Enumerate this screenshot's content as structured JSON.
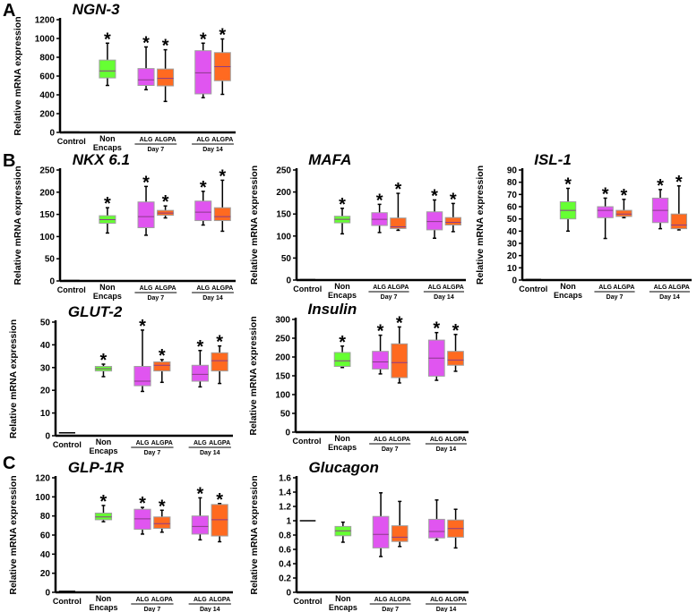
{
  "panel_labels": [
    "A",
    "B",
    "C"
  ],
  "colors": {
    "nonencaps": "#66ff33",
    "alg": "#e055f0",
    "algpa": "#ff6a20",
    "outline": "#a0a0a0",
    "median": "#8a3a8a"
  },
  "x_labels": {
    "control": "Control",
    "non1": "Non",
    "non2": "Encaps",
    "alg": "ALG",
    "algpa": "ALGPA",
    "day7": "Day 7",
    "day14": "Day 14"
  },
  "chart_data": [
    {
      "type": "box",
      "title": "NGN-3",
      "ylabel": "Relative mRNA expression",
      "ylim": [
        0,
        1200
      ],
      "yticks": [
        0,
        200,
        400,
        600,
        800,
        1000,
        1200
      ],
      "control": 5,
      "groups": [
        {
          "name": "Non Encaps",
          "color": "nonencaps",
          "values": [
            500,
            580,
            655,
            770,
            950
          ],
          "star": true
        },
        {
          "name": "ALG Day 7",
          "color": "alg",
          "values": [
            455,
            500,
            560,
            680,
            910
          ],
          "star": true
        },
        {
          "name": "ALGPA Day 7",
          "color": "algpa",
          "values": [
            330,
            495,
            575,
            675,
            880
          ],
          "star": true
        },
        {
          "name": "ALG Day 14",
          "color": "alg",
          "values": [
            370,
            410,
            635,
            870,
            950
          ],
          "star": true
        },
        {
          "name": "ALGPA Day 14",
          "color": "algpa",
          "values": [
            405,
            550,
            700,
            850,
            995
          ],
          "star": true
        }
      ]
    },
    {
      "type": "box",
      "title": "NKX 6.1",
      "ylabel": "Relative mRNA expression",
      "ylim": [
        0,
        250
      ],
      "yticks": [
        0,
        50,
        100,
        150,
        200,
        250
      ],
      "control": 1,
      "groups": [
        {
          "name": "Non Encaps",
          "color": "nonencaps",
          "values": [
            108,
            130,
            138,
            147,
            165
          ],
          "star": true
        },
        {
          "name": "ALG Day 7",
          "color": "alg",
          "values": [
            103,
            120,
            145,
            178,
            213
          ],
          "star": true
        },
        {
          "name": "ALGPA Day 7",
          "color": "algpa",
          "values": [
            142,
            148,
            153,
            159,
            169
          ],
          "star": true
        },
        {
          "name": "ALG Day 14",
          "color": "alg",
          "values": [
            126,
            136,
            155,
            180,
            202
          ],
          "star": true
        },
        {
          "name": "ALGPA Day 14",
          "color": "algpa",
          "values": [
            112,
            136,
            145,
            165,
            227
          ],
          "star": true
        }
      ]
    },
    {
      "type": "box",
      "title": "MAFA",
      "ylabel": "Relative mRNA expression",
      "ylim": [
        0,
        250
      ],
      "yticks": [
        0,
        50,
        100,
        150,
        200,
        250
      ],
      "control": 1,
      "groups": [
        {
          "name": "Non Encaps",
          "color": "nonencaps",
          "values": [
            105,
            130,
            138,
            145,
            163
          ],
          "star": true
        },
        {
          "name": "ALG Day 7",
          "color": "alg",
          "values": [
            108,
            124,
            138,
            153,
            172
          ],
          "star": true
        },
        {
          "name": "ALGPA Day 7",
          "color": "algpa",
          "values": [
            113,
            117,
            121,
            141,
            197
          ],
          "star": true
        },
        {
          "name": "ALG Day 14",
          "color": "alg",
          "values": [
            95,
            114,
            133,
            155,
            182
          ],
          "star": true
        },
        {
          "name": "ALGPA Day 14",
          "color": "algpa",
          "values": [
            110,
            125,
            131,
            142,
            174
          ],
          "star": true
        }
      ]
    },
    {
      "type": "box",
      "title": "ISL-1",
      "ylabel": "Relative mRNA expression",
      "ylim": [
        0,
        90
      ],
      "yticks": [
        0,
        10,
        20,
        30,
        40,
        50,
        60,
        70,
        80,
        90
      ],
      "control": 0.5,
      "groups": [
        {
          "name": "Non Encaps",
          "color": "nonencaps",
          "values": [
            40,
            50,
            57,
            64,
            75
          ],
          "star": true
        },
        {
          "name": "ALG Day 7",
          "color": "alg",
          "values": [
            34,
            51,
            57,
            60,
            67
          ],
          "star": true
        },
        {
          "name": "ALGPA Day 7",
          "color": "algpa",
          "values": [
            51,
            52,
            54,
            57,
            66
          ],
          "star": true
        },
        {
          "name": "ALG Day 14",
          "color": "alg",
          "values": [
            42,
            47,
            57,
            67,
            74
          ],
          "star": true
        },
        {
          "name": "ALGPA Day 14",
          "color": "algpa",
          "values": [
            41,
            42,
            45,
            54,
            77
          ],
          "star": true
        }
      ]
    },
    {
      "type": "box",
      "title": "GLUT-2",
      "ylabel": "Relative mRNA expression",
      "ylim": [
        0,
        50
      ],
      "yticks": [
        0,
        10,
        20,
        30,
        40,
        50
      ],
      "control": 1.3,
      "groups": [
        {
          "name": "Non Encaps",
          "color": "nonencaps",
          "values": [
            26,
            28.5,
            29.5,
            30.5,
            31.5
          ],
          "star": true
        },
        {
          "name": "ALG Day 7",
          "color": "alg",
          "values": [
            19.5,
            22,
            24,
            30.5,
            46.5
          ],
          "star": true
        },
        {
          "name": "ALGPA Day 7",
          "color": "algpa",
          "values": [
            23.5,
            28.5,
            31,
            32.5,
            33.5
          ],
          "star": true
        },
        {
          "name": "ALG Day 14",
          "color": "alg",
          "values": [
            21.5,
            24,
            27,
            31,
            37.5
          ],
          "star": true
        },
        {
          "name": "ALGPA Day 14",
          "color": "algpa",
          "values": [
            23,
            28.5,
            33,
            36.5,
            39.5
          ],
          "star": true
        }
      ]
    },
    {
      "type": "box",
      "title": "Insulin",
      "ylabel": "Relative mRNA expression",
      "ylim": [
        0,
        300
      ],
      "yticks": [
        0,
        50,
        100,
        150,
        200,
        250,
        300
      ],
      "control": 1,
      "groups": [
        {
          "name": "Non Encaps",
          "color": "nonencaps",
          "values": [
            172,
            175,
            190,
            212,
            229
          ],
          "star": true
        },
        {
          "name": "ALG Day 7",
          "color": "alg",
          "values": [
            155,
            168,
            187,
            215,
            258
          ],
          "star": true
        },
        {
          "name": "ALGPA Day 7",
          "color": "algpa",
          "values": [
            131,
            145,
            185,
            235,
            280
          ],
          "star": true
        },
        {
          "name": "ALG Day 14",
          "color": "alg",
          "values": [
            138,
            149,
            197,
            245,
            265
          ],
          "star": true
        },
        {
          "name": "ALGPA Day 14",
          "color": "algpa",
          "values": [
            162,
            178,
            192,
            215,
            260
          ],
          "star": true
        }
      ]
    },
    {
      "type": "box",
      "title": "GLP-1R",
      "ylabel": "Relative mRNA expression",
      "ylim": [
        0,
        120
      ],
      "yticks": [
        0,
        20,
        40,
        60,
        80,
        100,
        120
      ],
      "control": 1,
      "groups": [
        {
          "name": "Non Encaps",
          "color": "nonencaps",
          "values": [
            74,
            76,
            79,
            83,
            91
          ],
          "star": true
        },
        {
          "name": "ALG Day 7",
          "color": "alg",
          "values": [
            61,
            66,
            77,
            87,
            89
          ],
          "star": true
        },
        {
          "name": "ALGPA Day 7",
          "color": "algpa",
          "values": [
            63,
            67,
            72,
            79,
            86
          ],
          "star": true
        },
        {
          "name": "ALG Day 14",
          "color": "alg",
          "values": [
            55,
            61,
            69,
            80,
            99
          ],
          "star": true
        },
        {
          "name": "ALGPA Day 14",
          "color": "algpa",
          "values": [
            53,
            59,
            76,
            92,
            93
          ],
          "star": true
        }
      ]
    },
    {
      "type": "box",
      "title": "Glucagon",
      "ylabel": "Relative mRNA expression",
      "ylim": [
        0,
        1.6
      ],
      "yticks": [
        0,
        0.2,
        0.4,
        0.6,
        0.8,
        1,
        1.2,
        1.4,
        1.6
      ],
      "control": 1.0,
      "groups": [
        {
          "name": "Non Encaps",
          "color": "nonencaps",
          "values": [
            0.7,
            0.79,
            0.86,
            0.92,
            0.98
          ],
          "star": false
        },
        {
          "name": "ALG Day 7",
          "color": "alg",
          "values": [
            0.5,
            0.62,
            0.81,
            1.06,
            1.39
          ],
          "star": false
        },
        {
          "name": "ALGPA Day 7",
          "color": "algpa",
          "values": [
            0.64,
            0.71,
            0.77,
            0.93,
            1.27
          ],
          "star": false
        },
        {
          "name": "ALG Day 14",
          "color": "alg",
          "values": [
            0.73,
            0.76,
            0.85,
            1.02,
            1.29
          ],
          "star": false
        },
        {
          "name": "ALGPA Day 14",
          "color": "algpa",
          "values": [
            0.62,
            0.77,
            0.89,
            1.01,
            1.16
          ],
          "star": false
        }
      ]
    }
  ]
}
